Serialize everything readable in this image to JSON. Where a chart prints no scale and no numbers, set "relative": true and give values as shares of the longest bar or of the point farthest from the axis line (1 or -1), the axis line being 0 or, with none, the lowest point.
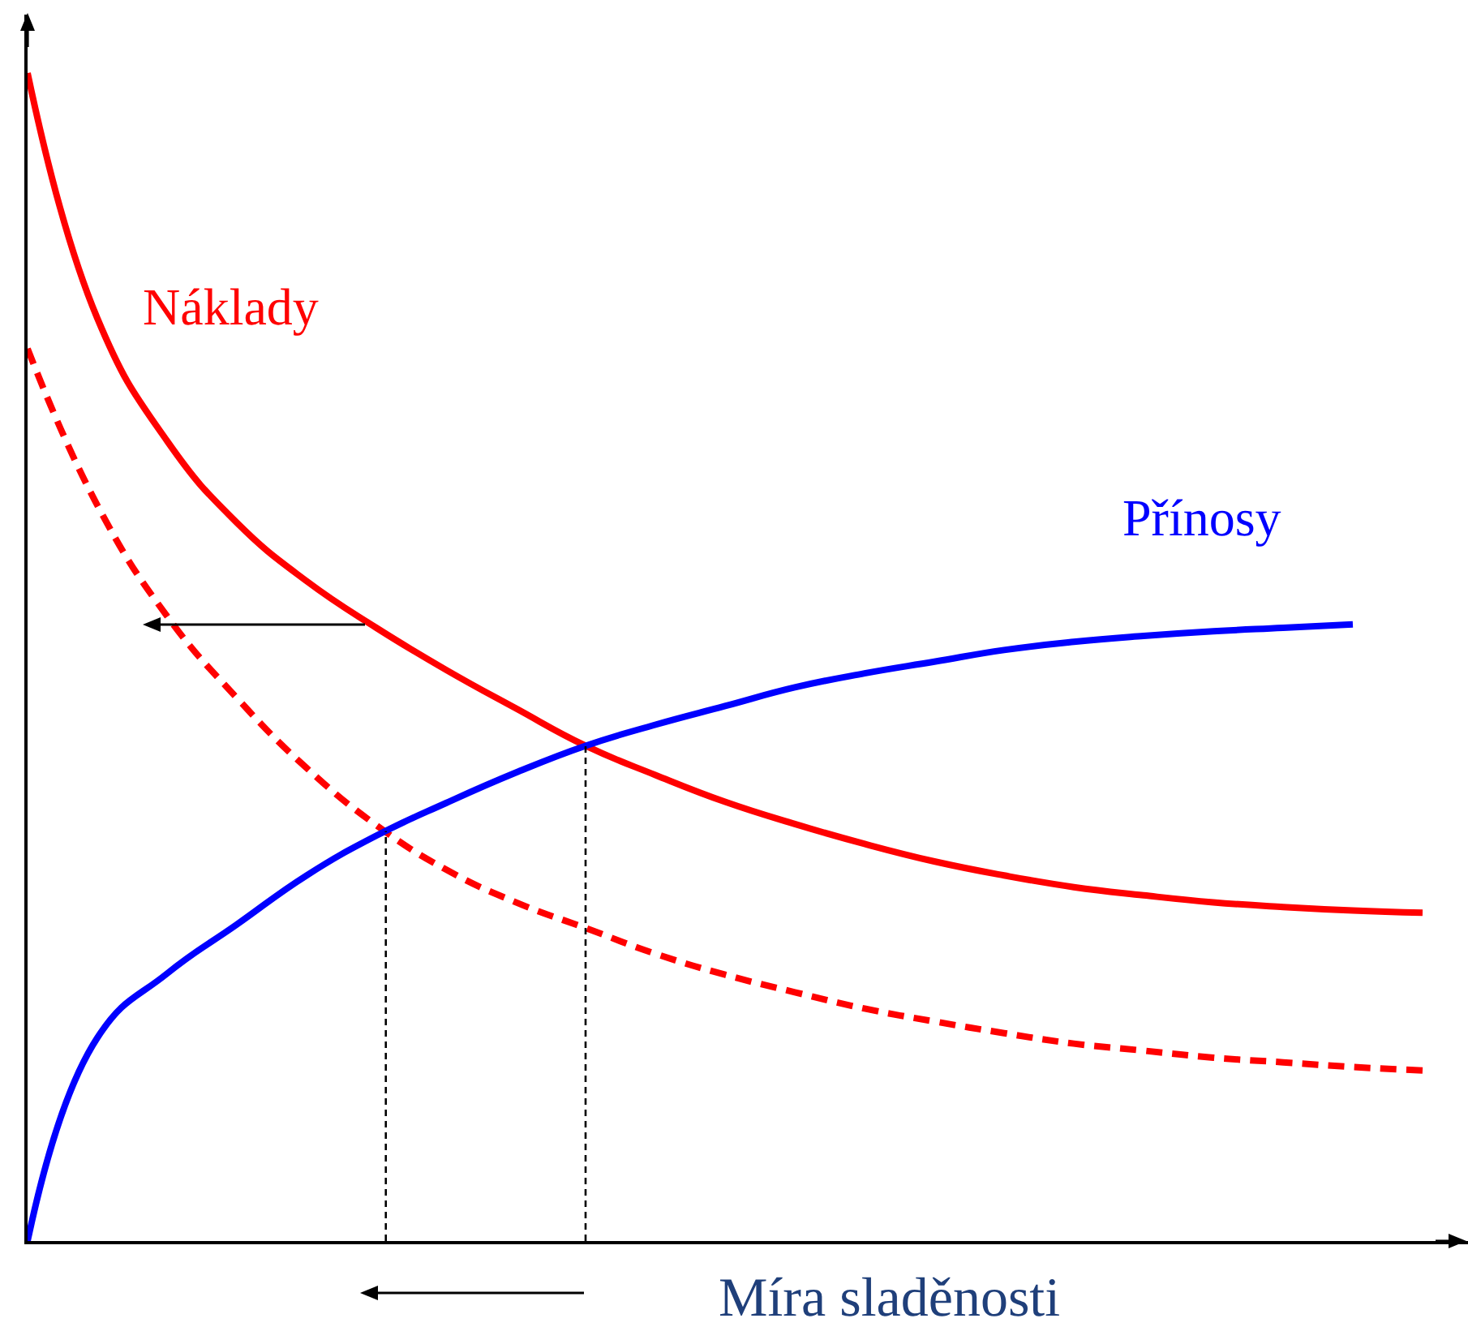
{
  "chart_data": {
    "type": "line",
    "relative": true,
    "xlabel": "Míra sladěnosti",
    "legend": false,
    "marker": "none",
    "categories": [
      null,
      null,
      null,
      null,
      null,
      null,
      null,
      null,
      null,
      null,
      null,
      null,
      null,
      null,
      null,
      null,
      null,
      null,
      null,
      null,
      null
    ],
    "series": [
      {
        "name": "Náklady",
        "color": "#ff0000",
        "line_style": "solid",
        "values": [
          1.0,
          0.79,
          0.685,
          0.615,
          0.565,
          0.525,
          0.489,
          0.456,
          0.424,
          0.399,
          0.376,
          0.357,
          0.34,
          0.325,
          0.313,
          0.303,
          0.296,
          0.29,
          0.286,
          0.283,
          0.281
        ]
      },
      {
        "color": "#ff0000",
        "line_style": "dashed",
        "values": [
          0.764,
          0.63,
          0.535,
          0.465,
          0.405,
          0.356,
          0.318,
          0.29,
          0.268,
          0.246,
          0.228,
          0.213,
          0.199,
          0.188,
          0.178,
          0.169,
          0.163,
          0.157,
          0.153,
          0.149,
          0.146
        ]
      },
      {
        "name": "Přínosy",
        "color": "#0000ff",
        "line_style": "solid",
        "values": [
          0,
          0.174,
          0.229,
          0.271,
          0.313,
          0.347,
          0.375,
          0.401,
          0.424,
          0.442,
          0.458,
          0.474,
          0.486,
          0.496,
          0.506,
          0.513,
          0.518,
          0.522,
          0.525,
          0.528,
          null
        ]
      }
    ]
  }
}
